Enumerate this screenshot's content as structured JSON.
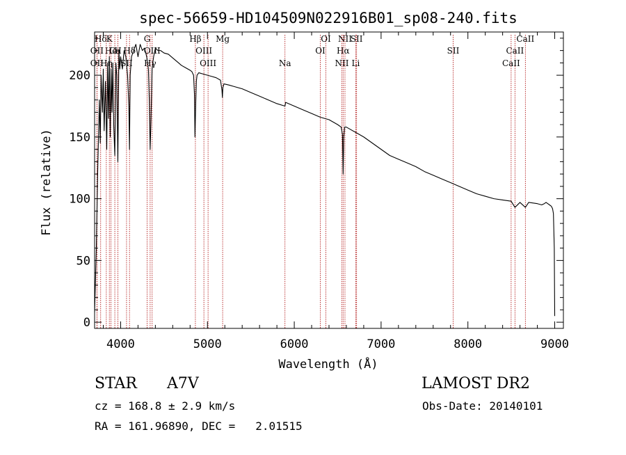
{
  "chart_data": {
    "type": "line",
    "title": "spec-56659-HD104509N022916B01_sp08-240.fits",
    "xlabel": "Wavelength (Å)",
    "ylabel": "Flux (relative)",
    "xlim": [
      3700,
      9100
    ],
    "ylim": [
      -5,
      235
    ],
    "xticks": [
      4000,
      5000,
      6000,
      7000,
      8000,
      9000
    ],
    "yticks": [
      0,
      50,
      100,
      150,
      200
    ],
    "grid": false,
    "line_color": "#000000",
    "marker_color": "#aa0000",
    "series": [
      {
        "x": [
          3700,
          3720,
          3735,
          3745,
          3755,
          3765,
          3775,
          3790,
          3800,
          3810,
          3825,
          3840,
          3850,
          3860,
          3870,
          3880,
          3890,
          3900,
          3910,
          3920,
          3933,
          3945,
          3955,
          3968,
          3980,
          3990,
          4000,
          4020,
          4040,
          4060,
          4080,
          4095,
          4102,
          4110,
          4125,
          4150,
          4175,
          4200,
          4225,
          4250,
          4275,
          4300,
          4320,
          4330,
          4340,
          4350,
          4362,
          4380,
          4400,
          4430,
          4460,
          4500,
          4550,
          4600,
          4650,
          4700,
          4750,
          4800,
          4820,
          4840,
          4850,
          4856,
          4861,
          4866,
          4872,
          4880,
          4900,
          4950,
          5000,
          5050,
          5100,
          5150,
          5167,
          5172,
          5178,
          5190,
          5250,
          5300,
          5400,
          5500,
          5600,
          5700,
          5800,
          5893,
          5900,
          6000,
          6100,
          6200,
          6300,
          6400,
          6500,
          6540,
          6555,
          6563,
          6570,
          6580,
          6600,
          6700,
          6800,
          6900,
          7000,
          7100,
          7200,
          7300,
          7400,
          7500,
          7600,
          7700,
          7800,
          7900,
          8000,
          8100,
          8200,
          8300,
          8400,
          8498,
          8542,
          8600,
          8662,
          8700,
          8800,
          8850,
          8880,
          8900,
          8920,
          8940,
          8960,
          8975,
          8985,
          8995,
          9000
        ],
        "y": [
          8,
          60,
          120,
          150,
          180,
          145,
          200,
          170,
          205,
          155,
          195,
          140,
          210,
          165,
          215,
          150,
          205,
          170,
          210,
          160,
          135,
          210,
          200,
          130,
          220,
          205,
          215,
          205,
          220,
          215,
          200,
          175,
          140,
          200,
          215,
          220,
          225,
          215,
          225,
          220,
          222,
          215,
          205,
          180,
          140,
          165,
          205,
          215,
          222,
          220,
          220,
          218,
          217,
          214,
          211,
          208,
          206,
          204,
          203,
          200,
          185,
          150,
          165,
          180,
          195,
          200,
          202,
          201,
          200,
          199,
          198,
          196,
          188,
          182,
          190,
          193,
          192,
          191,
          189,
          186,
          183,
          180,
          177,
          175,
          178,
          175,
          172,
          169,
          166,
          164,
          160,
          158,
          152,
          120,
          150,
          158,
          158,
          154,
          150,
          145,
          140,
          135,
          132,
          129,
          126,
          122,
          119,
          116,
          113,
          110,
          107,
          104,
          102,
          100,
          99,
          98,
          93,
          97,
          93,
          97,
          96,
          95,
          96,
          97,
          96,
          95,
          94,
          92,
          88,
          60,
          5
        ]
      }
    ],
    "spectral_lines": [
      {
        "label": "Hδ",
        "x": 3770,
        "row": 0
      },
      {
        "label": "K",
        "x": 3870,
        "row": 0
      },
      {
        "label": "G",
        "x": 4305,
        "row": 0
      },
      {
        "label": "Hβ",
        "x": 4861,
        "row": 0
      },
      {
        "label": "Mg",
        "x": 5175,
        "row": 0
      },
      {
        "label": "OI",
        "x": 6364,
        "row": 0
      },
      {
        "label": "NII",
        "x": 6584,
        "row": 0
      },
      {
        "label": "SII",
        "x": 6718,
        "row": 0
      },
      {
        "label": "CaII",
        "x": 8662,
        "row": 0
      },
      {
        "label": "OII",
        "x": 3727,
        "row": 1
      },
      {
        "label": "He",
        "x": 3889,
        "row": 1
      },
      {
        "label": "Ca",
        "x": 3933,
        "row": 1
      },
      {
        "label": "H",
        "x": 3968,
        "row": 1
      },
      {
        "label": "Hδ",
        "x": 4102,
        "row": 1
      },
      {
        "label": "OIII",
        "x": 4363,
        "row": 1
      },
      {
        "label": "OIII",
        "x": 4959,
        "row": 1
      },
      {
        "label": "OI",
        "x": 6300,
        "row": 1
      },
      {
        "label": "Hα",
        "x": 6563,
        "row": 1
      },
      {
        "label": "SII",
        "x": 7830,
        "row": 1
      },
      {
        "label": "CaII",
        "x": 8542,
        "row": 1
      },
      {
        "label": "OII",
        "x": 3727,
        "row": 2
      },
      {
        "label": "Hη",
        "x": 3835,
        "row": 2
      },
      {
        "label": "SII",
        "x": 4068,
        "row": 2
      },
      {
        "label": "Hγ",
        "x": 4340,
        "row": 2
      },
      {
        "label": "OIII",
        "x": 5007,
        "row": 2
      },
      {
        "label": "Na",
        "x": 5893,
        "row": 2
      },
      {
        "label": "NII",
        "x": 6548,
        "row": 2
      },
      {
        "label": "Li",
        "x": 6708,
        "row": 2
      },
      {
        "label": "CaII",
        "x": 8498,
        "row": 2
      }
    ]
  },
  "info": {
    "object_class": "STAR",
    "subclass": "A7V",
    "survey": "LAMOST DR2",
    "redshift": "cz = 168.8 ± 2.9 km/s",
    "obs_date": "Obs-Date: 20140101",
    "coords": "RA = 161.96890, DEC =   2.01515"
  }
}
